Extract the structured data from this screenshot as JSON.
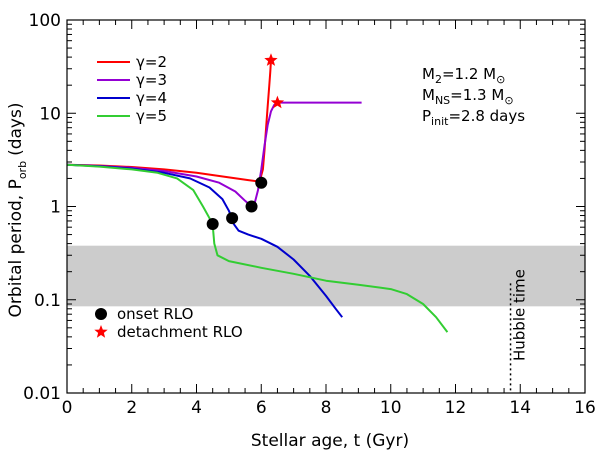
{
  "chart_data": {
    "type": "line",
    "xlabel": "Stellar age, t (Gyr)",
    "ylabel_main": "Orbital period, P",
    "ylabel_sub": "orb",
    "ylabel_unit": "(days)",
    "xlim": [
      0,
      16
    ],
    "ylim": [
      0.01,
      100
    ],
    "y_scale": "log",
    "x_ticks": [
      0,
      2,
      4,
      6,
      8,
      10,
      12,
      14,
      16
    ],
    "x_tick_labels": [
      "0",
      "2",
      "4",
      "6",
      "8",
      "10",
      "12",
      "14",
      "16"
    ],
    "y_ticks": [
      0.01,
      0.1,
      1,
      10,
      100
    ],
    "y_tick_labels": [
      "0.01",
      "0.1",
      "1",
      "10",
      "100"
    ],
    "shaded_band": {
      "y_range": [
        0.085,
        0.38
      ],
      "color": "#cccccc"
    },
    "hubble_time": {
      "x": 13.7,
      "y_range": [
        0.01,
        0.15
      ],
      "label": "Hubble time"
    },
    "series": [
      {
        "name": "γ=2",
        "color": "#ff0000",
        "points": [
          [
            0,
            2.8
          ],
          [
            1,
            2.75
          ],
          [
            2,
            2.65
          ],
          [
            3,
            2.5
          ],
          [
            4,
            2.3
          ],
          [
            5,
            2.05
          ],
          [
            5.6,
            1.92
          ],
          [
            5.95,
            1.85
          ],
          [
            6.05,
            2.5
          ],
          [
            6.1,
            4
          ],
          [
            6.15,
            7
          ],
          [
            6.2,
            12
          ],
          [
            6.25,
            20
          ],
          [
            6.28,
            28
          ],
          [
            6.3,
            37
          ]
        ]
      },
      {
        "name": "γ=3",
        "color": "#9400d3",
        "points": [
          [
            0,
            2.8
          ],
          [
            1,
            2.72
          ],
          [
            2,
            2.6
          ],
          [
            3,
            2.4
          ],
          [
            4,
            2.1
          ],
          [
            4.7,
            1.8
          ],
          [
            5.2,
            1.45
          ],
          [
            5.5,
            1.15
          ],
          [
            5.7,
            1.0
          ],
          [
            5.8,
            1.1
          ],
          [
            5.9,
            1.5
          ],
          [
            6.0,
            2.5
          ],
          [
            6.1,
            4.5
          ],
          [
            6.2,
            7.5
          ],
          [
            6.3,
            10.5
          ],
          [
            6.4,
            12.3
          ],
          [
            6.5,
            13.0
          ],
          [
            7.0,
            13.0
          ],
          [
            8.0,
            13.0
          ],
          [
            9.1,
            13.0
          ]
        ]
      },
      {
        "name": "γ=4",
        "color": "#0000cd",
        "points": [
          [
            0,
            2.8
          ],
          [
            1,
            2.7
          ],
          [
            2,
            2.55
          ],
          [
            3,
            2.3
          ],
          [
            3.8,
            2.0
          ],
          [
            4.4,
            1.6
          ],
          [
            4.8,
            1.2
          ],
          [
            5.0,
            0.9
          ],
          [
            5.1,
            0.75
          ],
          [
            5.15,
            0.65
          ],
          [
            5.3,
            0.55
          ],
          [
            5.6,
            0.5
          ],
          [
            6.0,
            0.45
          ],
          [
            6.5,
            0.37
          ],
          [
            7.0,
            0.27
          ],
          [
            7.5,
            0.18
          ],
          [
            8.0,
            0.11
          ],
          [
            8.3,
            0.08
          ],
          [
            8.5,
            0.065
          ]
        ]
      },
      {
        "name": "γ=5",
        "color": "#32cd32",
        "points": [
          [
            0,
            2.8
          ],
          [
            1,
            2.68
          ],
          [
            2,
            2.5
          ],
          [
            2.8,
            2.3
          ],
          [
            3.4,
            2.0
          ],
          [
            3.9,
            1.5
          ],
          [
            4.2,
            1.0
          ],
          [
            4.4,
            0.75
          ],
          [
            4.5,
            0.63
          ],
          [
            4.55,
            0.4
          ],
          [
            4.65,
            0.3
          ],
          [
            5.0,
            0.26
          ],
          [
            6.0,
            0.22
          ],
          [
            7.0,
            0.19
          ],
          [
            8.0,
            0.16
          ],
          [
            9.0,
            0.145
          ],
          [
            10.0,
            0.13
          ],
          [
            10.5,
            0.115
          ],
          [
            11.0,
            0.09
          ],
          [
            11.4,
            0.065
          ],
          [
            11.75,
            0.045
          ]
        ]
      }
    ],
    "onset_points": [
      [
        4.5,
        0.65
      ],
      [
        5.1,
        0.75
      ],
      [
        5.7,
        1.0
      ],
      [
        6.0,
        1.8
      ]
    ],
    "detachment_points": [
      [
        6.3,
        37
      ],
      [
        6.5,
        13
      ]
    ],
    "markers_legend": [
      {
        "label": "onset RLO",
        "marker": "circle",
        "color": "#000000"
      },
      {
        "label": "detachment RLO",
        "marker": "star",
        "color": "#ff0000"
      }
    ],
    "annotations": [
      {
        "main": "M",
        "sub": "2",
        "rest": "=1.2 M",
        "sym": "⊙"
      },
      {
        "main": "M",
        "sub": "NS",
        "rest": "=1.3 M",
        "sym": "⊙"
      },
      {
        "main": "P",
        "sub": "init",
        "rest": "=2.8 days",
        "sym": ""
      }
    ],
    "legend_placement": "top-left"
  }
}
